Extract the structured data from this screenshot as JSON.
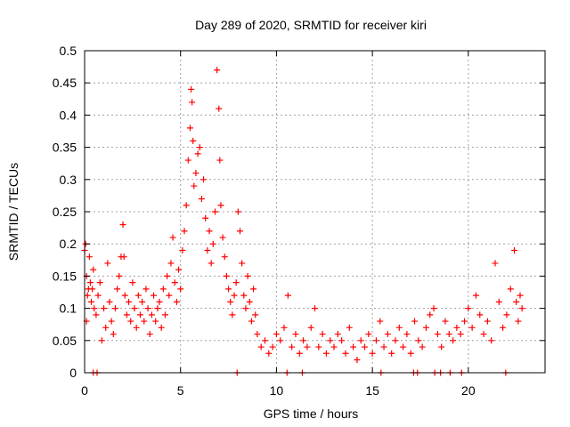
{
  "chart_data": {
    "type": "scatter",
    "title": "Day 289 of 2020, SRMTID for receiver kiri",
    "xlabel": "GPS time / hours",
    "ylabel": "SRMTID / TECUs",
    "xlim": [
      0,
      24
    ],
    "ylim": [
      0,
      0.5
    ],
    "xticks": [
      0,
      5,
      10,
      15,
      20
    ],
    "xtick_labels": [
      "0",
      "5",
      "10",
      "15",
      "20"
    ],
    "yticks": [
      0,
      0.05,
      0.1,
      0.15,
      0.2,
      0.25,
      0.3,
      0.35,
      0.4,
      0.45,
      0.5
    ],
    "ytick_labels": [
      "0",
      "0.05",
      "0.1",
      "0.15",
      "0.2",
      "0.25",
      "0.3",
      "0.35",
      "0.4",
      "0.45",
      "0.5"
    ],
    "grid": true,
    "marker": "plus",
    "series_color": "#ff0000",
    "series": [
      {
        "name": "SRMTID",
        "points": [
          [
            0.0,
            0.19
          ],
          [
            0.05,
            0.2
          ],
          [
            0.1,
            0.08
          ],
          [
            0.1,
            0.15
          ],
          [
            0.15,
            0.12
          ],
          [
            0.2,
            0.13
          ],
          [
            0.25,
            0.18
          ],
          [
            0.3,
            0.14
          ],
          [
            0.35,
            0.11
          ],
          [
            0.4,
            0.13
          ],
          [
            0.45,
            0.16
          ],
          [
            0.5,
            0.1
          ],
          [
            0.6,
            0.09
          ],
          [
            0.7,
            0.12
          ],
          [
            0.8,
            0.14
          ],
          [
            0.9,
            0.05
          ],
          [
            1.0,
            0.1
          ],
          [
            1.1,
            0.07
          ],
          [
            1.2,
            0.17
          ],
          [
            1.3,
            0.11
          ],
          [
            1.4,
            0.08
          ],
          [
            1.5,
            0.06
          ],
          [
            1.6,
            0.1
          ],
          [
            1.7,
            0.13
          ],
          [
            1.8,
            0.15
          ],
          [
            1.9,
            0.18
          ],
          [
            2.0,
            0.23
          ],
          [
            2.05,
            0.18
          ],
          [
            2.1,
            0.12
          ],
          [
            2.2,
            0.09
          ],
          [
            2.3,
            0.11
          ],
          [
            2.4,
            0.08
          ],
          [
            2.5,
            0.14
          ],
          [
            2.6,
            0.1
          ],
          [
            2.7,
            0.07
          ],
          [
            2.8,
            0.12
          ],
          [
            2.9,
            0.09
          ],
          [
            3.0,
            0.11
          ],
          [
            3.1,
            0.08
          ],
          [
            3.2,
            0.13
          ],
          [
            3.3,
            0.1
          ],
          [
            3.4,
            0.06
          ],
          [
            3.5,
            0.09
          ],
          [
            3.6,
            0.12
          ],
          [
            3.7,
            0.08
          ],
          [
            3.8,
            0.1
          ],
          [
            3.9,
            0.11
          ],
          [
            4.0,
            0.07
          ],
          [
            4.1,
            0.13
          ],
          [
            4.2,
            0.09
          ],
          [
            4.3,
            0.15
          ],
          [
            4.4,
            0.12
          ],
          [
            4.5,
            0.17
          ],
          [
            4.6,
            0.21
          ],
          [
            4.7,
            0.14
          ],
          [
            4.8,
            0.11
          ],
          [
            4.9,
            0.16
          ],
          [
            5.0,
            0.13
          ],
          [
            5.1,
            0.19
          ],
          [
            5.2,
            0.22
          ],
          [
            5.3,
            0.26
          ],
          [
            5.4,
            0.33
          ],
          [
            5.5,
            0.38
          ],
          [
            5.55,
            0.44
          ],
          [
            5.6,
            0.42
          ],
          [
            5.65,
            0.36
          ],
          [
            5.7,
            0.29
          ],
          [
            5.8,
            0.31
          ],
          [
            5.9,
            0.34
          ],
          [
            6.0,
            0.35
          ],
          [
            6.1,
            0.27
          ],
          [
            6.2,
            0.3
          ],
          [
            6.3,
            0.24
          ],
          [
            6.4,
            0.19
          ],
          [
            6.5,
            0.22
          ],
          [
            6.6,
            0.17
          ],
          [
            6.7,
            0.2
          ],
          [
            6.8,
            0.25
          ],
          [
            6.9,
            0.47
          ],
          [
            7.0,
            0.41
          ],
          [
            7.05,
            0.33
          ],
          [
            7.1,
            0.26
          ],
          [
            7.2,
            0.21
          ],
          [
            7.3,
            0.18
          ],
          [
            7.4,
            0.15
          ],
          [
            7.5,
            0.13
          ],
          [
            7.6,
            0.11
          ],
          [
            7.7,
            0.09
          ],
          [
            7.8,
            0.12
          ],
          [
            7.9,
            0.14
          ],
          [
            8.0,
            0.25
          ],
          [
            8.1,
            0.22
          ],
          [
            8.2,
            0.17
          ],
          [
            8.3,
            0.12
          ],
          [
            8.4,
            0.1
          ],
          [
            8.5,
            0.15
          ],
          [
            8.6,
            0.11
          ],
          [
            8.7,
            0.08
          ],
          [
            8.8,
            0.13
          ],
          [
            8.9,
            0.09
          ],
          [
            9.0,
            0.06
          ],
          [
            9.2,
            0.04
          ],
          [
            9.4,
            0.05
          ],
          [
            9.6,
            0.03
          ],
          [
            9.8,
            0.04
          ],
          [
            10.0,
            0.06
          ],
          [
            10.2,
            0.05
          ],
          [
            10.4,
            0.07
          ],
          [
            10.6,
            0.12
          ],
          [
            10.8,
            0.04
          ],
          [
            11.0,
            0.06
          ],
          [
            11.2,
            0.03
          ],
          [
            11.4,
            0.05
          ],
          [
            11.6,
            0.04
          ],
          [
            11.8,
            0.07
          ],
          [
            12.0,
            0.1
          ],
          [
            12.2,
            0.04
          ],
          [
            12.4,
            0.06
          ],
          [
            12.6,
            0.03
          ],
          [
            12.8,
            0.05
          ],
          [
            13.0,
            0.04
          ],
          [
            13.2,
            0.06
          ],
          [
            13.4,
            0.05
          ],
          [
            13.6,
            0.03
          ],
          [
            13.8,
            0.07
          ],
          [
            14.0,
            0.04
          ],
          [
            14.2,
            0.02
          ],
          [
            14.4,
            0.05
          ],
          [
            14.6,
            0.04
          ],
          [
            14.8,
            0.06
          ],
          [
            15.0,
            0.03
          ],
          [
            15.2,
            0.05
          ],
          [
            15.4,
            0.08
          ],
          [
            15.6,
            0.04
          ],
          [
            15.8,
            0.06
          ],
          [
            16.0,
            0.03
          ],
          [
            16.2,
            0.05
          ],
          [
            16.4,
            0.07
          ],
          [
            16.6,
            0.04
          ],
          [
            16.8,
            0.06
          ],
          [
            17.0,
            0.03
          ],
          [
            17.2,
            0.08
          ],
          [
            17.4,
            0.05
          ],
          [
            17.6,
            0.04
          ],
          [
            17.8,
            0.07
          ],
          [
            18.0,
            0.09
          ],
          [
            18.2,
            0.1
          ],
          [
            18.4,
            0.06
          ],
          [
            18.6,
            0.04
          ],
          [
            18.8,
            0.08
          ],
          [
            19.0,
            0.06
          ],
          [
            19.2,
            0.05
          ],
          [
            19.4,
            0.07
          ],
          [
            19.6,
            0.06
          ],
          [
            19.8,
            0.08
          ],
          [
            20.0,
            0.1
          ],
          [
            20.2,
            0.07
          ],
          [
            20.4,
            0.12
          ],
          [
            20.6,
            0.09
          ],
          [
            20.8,
            0.06
          ],
          [
            21.0,
            0.08
          ],
          [
            21.2,
            0.05
          ],
          [
            21.4,
            0.17
          ],
          [
            21.6,
            0.11
          ],
          [
            21.8,
            0.07
          ],
          [
            22.0,
            0.09
          ],
          [
            22.2,
            0.13
          ],
          [
            22.4,
            0.19
          ],
          [
            22.5,
            0.11
          ],
          [
            22.6,
            0.08
          ],
          [
            22.7,
            0.12
          ],
          [
            22.8,
            0.1
          ],
          [
            0.45,
            0.0
          ],
          [
            0.65,
            0.0
          ],
          [
            7.95,
            0.0
          ],
          [
            10.55,
            0.0
          ],
          [
            11.35,
            0.0
          ],
          [
            15.45,
            0.0
          ],
          [
            17.15,
            0.0
          ],
          [
            17.35,
            0.0
          ],
          [
            18.25,
            0.0
          ],
          [
            18.55,
            0.0
          ],
          [
            19.05,
            0.0
          ],
          [
            19.65,
            0.0
          ],
          [
            21.95,
            0.0
          ]
        ]
      }
    ]
  }
}
